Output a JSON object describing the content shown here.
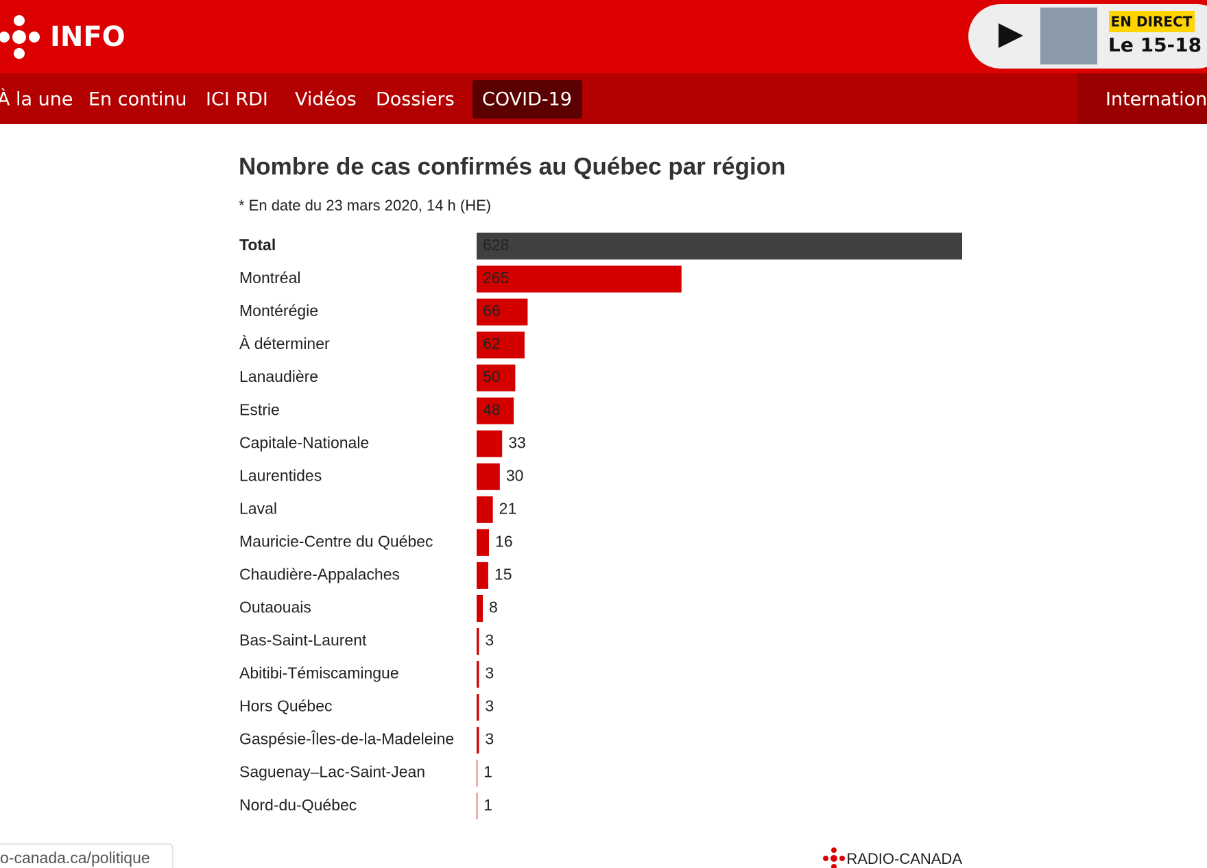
{
  "header": {
    "logo": "INFO",
    "live_badge": "EN DIRECT",
    "live_show": "Le 15-18"
  },
  "nav": {
    "items": [
      "À la une",
      "En continu",
      "ICI RDI",
      "Vidéos",
      "Dossiers",
      "COVID-19",
      "Internation"
    ],
    "active": "COVID-19"
  },
  "chart_data": {
    "type": "hbar",
    "title": "Nombre de cas confirmés au Québec par région",
    "subtitle": "* En date du 23 mars 2020, 14 h (HE)",
    "categories": [
      "Total",
      "Montréal",
      "Montérégie",
      "À déterminer",
      "Lanaudière",
      "Estrie",
      "Capitale-Nationale",
      "Laurentides",
      "Laval",
      "Mauricie-Centre du Québec",
      "Chaudière-Appalaches",
      "Outaouais",
      "Bas-Saint-Laurent",
      "Abitibi-Témiscamingue",
      "Hors Québec",
      "Gaspésie-Îles-de-la-Madeleine",
      "Saguenay–Lac-Saint-Jean",
      "Nord-du-Québec"
    ],
    "values": [
      628,
      265,
      66,
      62,
      50,
      48,
      33,
      30,
      21,
      16,
      15,
      8,
      3,
      3,
      3,
      3,
      1,
      1
    ],
    "colors": [
      "#404040",
      "#d40000",
      "#d40000",
      "#d40000",
      "#d40000",
      "#d40000",
      "#d40000",
      "#d40000",
      "#d40000",
      "#d40000",
      "#d40000",
      "#d40000",
      "#d40000",
      "#d40000",
      "#d40000",
      "#d40000",
      "#d40000",
      "#d40000"
    ]
  },
  "footer": {
    "brand": "RADIO-CANADA",
    "status_url": "o-canada.ca/politique"
  }
}
